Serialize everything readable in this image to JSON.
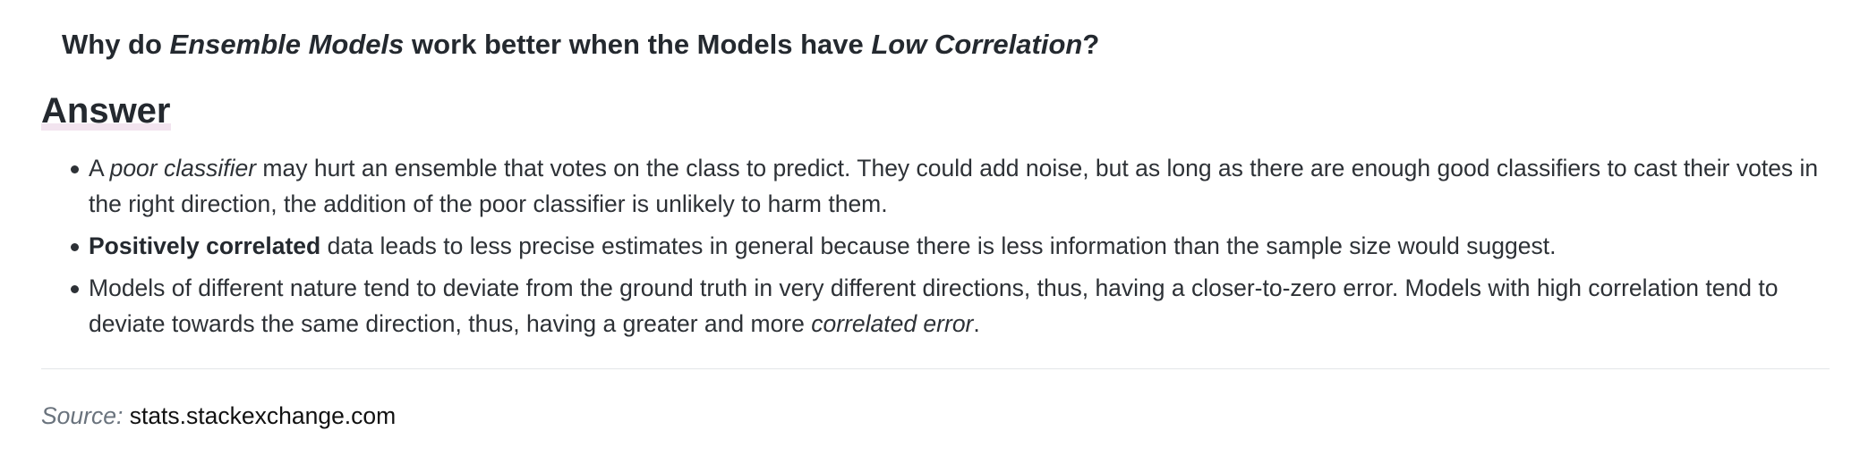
{
  "question": {
    "part1": "Why do ",
    "em1": "Ensemble Models",
    "part2": " work better when the Models have ",
    "em2": "Low Correlation",
    "part3": "?"
  },
  "answer_heading": "Answer",
  "bullets": [
    {
      "pre": "A ",
      "emphasis": "poor classifier",
      "post": " may hurt an ensemble that votes on the class to predict. They could add noise, but as long as there are enough good classifiers to cast their votes in the right direction, the addition of the poor classifier is unlikely to harm them."
    },
    {
      "strong": "Positively correlated",
      "post": " data leads to less precise estimates in general because there is less information than the sample size would suggest."
    },
    {
      "pre": "Models of different nature tend to deviate from the ground truth in very different directions, thus, having a closer-to-zero error. Models with high correlation tend to deviate towards the same direction, thus, having a greater and more ",
      "emphasis": "correlated error",
      "post": "."
    }
  ],
  "source": {
    "label": "Source:",
    "site": "stats.stackexchange.com"
  }
}
